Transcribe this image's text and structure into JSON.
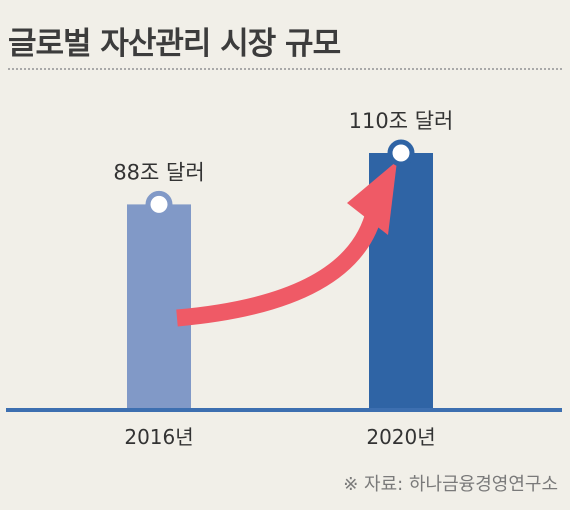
{
  "title": "글로벌 자산관리 시장 규모",
  "source": "※ 자료: 하나금융경영연구소",
  "chart_data": {
    "type": "bar",
    "categories": [
      "2016년",
      "2020년"
    ],
    "values": [
      88,
      110
    ],
    "value_labels": [
      "88조 달러",
      "110조 달러"
    ],
    "unit": "조 달러",
    "bar_colors": [
      "#8199c7",
      "#2f64a5"
    ],
    "axis_color": "#3d6fb0",
    "arrow_color": "#ef5a66",
    "grid": false,
    "legend": "none"
  }
}
